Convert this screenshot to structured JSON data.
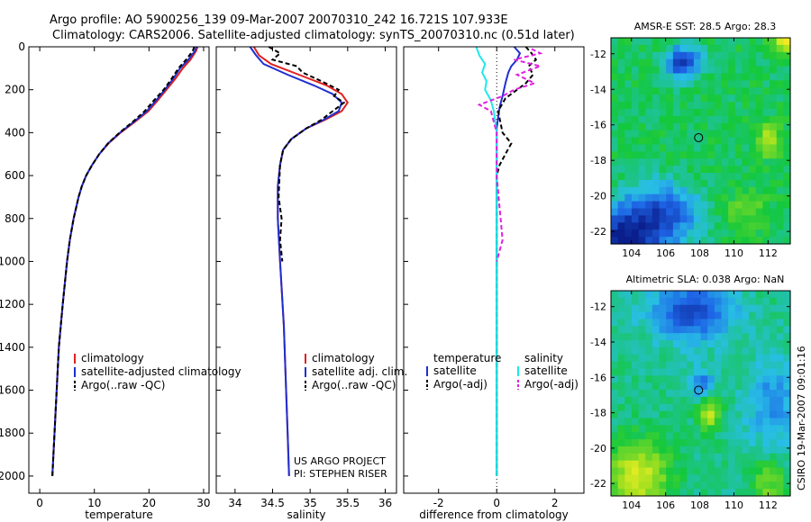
{
  "header": {
    "title_line1": "Argo profile: AO 5900256_139 09-Mar-2007 20070310_242 16.721S 107.933E",
    "title_line2": "Climatology: CARS2006. Satellite-adjusted climatology: synTS_20070310.nc (0.51d later)"
  },
  "colors": {
    "climatology": "#e02020",
    "satellite": "#1f2fd0",
    "argo": "#000000",
    "salinity_satellite": "#20e8e8",
    "salinity_argo": "#e020e0"
  },
  "chart_data": [
    {
      "id": "temperature",
      "type": "line",
      "xlabel": "temperature",
      "ylabel": "",
      "xlim": [
        -2,
        31
      ],
      "ylim": [
        2080,
        0
      ],
      "xticks": [
        0,
        10,
        20,
        30
      ],
      "xtick_labels": [
        "0",
        "10",
        "20",
        "30"
      ],
      "yticks": [
        0,
        200,
        400,
        600,
        800,
        1000,
        1200,
        1400,
        1600,
        1800,
        2000
      ],
      "ytick_labels": [
        "0",
        "200",
        "400",
        "600",
        "800",
        "1000",
        "1200",
        "1400",
        "1600",
        "1800",
        "2000"
      ],
      "legend": [
        "climatology",
        "satellite-adjusted climatology",
        "Argo(..raw -QC)"
      ],
      "legend_position": "lower-right",
      "series": [
        {
          "name": "climatology",
          "color_key": "climatology",
          "dash": "",
          "points": [
            [
              28.9,
              0
            ],
            [
              28.6,
              20
            ],
            [
              27.6,
              60
            ],
            [
              26.2,
              100
            ],
            [
              24.8,
              150
            ],
            [
              23.2,
              200
            ],
            [
              21.6,
              250
            ],
            [
              19.9,
              300
            ],
            [
              17.4,
              350
            ],
            [
              14.8,
              400
            ],
            [
              12.6,
              450
            ],
            [
              10.9,
              500
            ],
            [
              9.6,
              550
            ],
            [
              8.5,
              600
            ],
            [
              7.7,
              650
            ],
            [
              7.1,
              700
            ],
            [
              6.2,
              800
            ],
            [
              5.5,
              900
            ],
            [
              5.0,
              1000
            ],
            [
              4.2,
              1200
            ],
            [
              3.5,
              1400
            ],
            [
              3.1,
              1600
            ],
            [
              2.7,
              1800
            ],
            [
              2.3,
              2000
            ]
          ]
        },
        {
          "name": "satellite-adjusted climatology",
          "color_key": "satellite",
          "dash": "",
          "points": [
            [
              28.7,
              0
            ],
            [
              28.4,
              20
            ],
            [
              27.2,
              60
            ],
            [
              25.7,
              100
            ],
            [
              24.4,
              150
            ],
            [
              22.9,
              200
            ],
            [
              21.3,
              250
            ],
            [
              19.6,
              300
            ],
            [
              17.2,
              350
            ],
            [
              14.7,
              400
            ],
            [
              12.5,
              450
            ],
            [
              10.9,
              500
            ],
            [
              9.6,
              550
            ],
            [
              8.5,
              600
            ],
            [
              7.7,
              650
            ],
            [
              7.1,
              700
            ],
            [
              6.2,
              800
            ],
            [
              5.5,
              900
            ],
            [
              5.0,
              1000
            ],
            [
              4.2,
              1200
            ],
            [
              3.5,
              1400
            ],
            [
              3.1,
              1600
            ],
            [
              2.7,
              1800
            ],
            [
              2.3,
              2000
            ]
          ]
        },
        {
          "name": "Argo(..raw -QC)",
          "color_key": "argo",
          "dash": "5 3",
          "points": [
            [
              28.3,
              0
            ],
            [
              28.0,
              20
            ],
            [
              26.8,
              60
            ],
            [
              25.4,
              100
            ],
            [
              24.1,
              150
            ],
            [
              22.7,
              200
            ],
            [
              20.9,
              250
            ],
            [
              19.2,
              300
            ],
            [
              17.0,
              350
            ],
            [
              14.6,
              400
            ],
            [
              12.5,
              450
            ],
            [
              10.9,
              500
            ],
            [
              9.6,
              550
            ],
            [
              8.5,
              600
            ],
            [
              7.7,
              650
            ],
            [
              7.1,
              700
            ],
            [
              6.2,
              800
            ],
            [
              5.5,
              900
            ],
            [
              5.0,
              1000
            ],
            [
              4.2,
              1200
            ],
            [
              3.5,
              1400
            ],
            [
              3.1,
              1600
            ],
            [
              2.7,
              1800
            ],
            [
              2.3,
              2000
            ]
          ]
        }
      ]
    },
    {
      "id": "salinity",
      "type": "line",
      "xlabel": "salinity",
      "xlim": [
        33.75,
        36.15
      ],
      "ylim": [
        2080,
        0
      ],
      "xticks": [
        34,
        34.5,
        35,
        35.5,
        36
      ],
      "xtick_labels": [
        "34",
        "34.5",
        "35",
        "35.5",
        "36"
      ],
      "legend": [
        "climatology",
        "satellite adj. clim.",
        "Argo(..raw -QC)"
      ],
      "legend_position": "lower-right",
      "annotations": [
        "US ARGO PROJECT",
        "PI: STEPHEN RISER"
      ],
      "series": [
        {
          "name": "climatology",
          "color_key": "climatology",
          "dash": "",
          "points": [
            [
              34.25,
              0
            ],
            [
              34.32,
              40
            ],
            [
              34.48,
              80
            ],
            [
              34.85,
              130
            ],
            [
              35.22,
              180
            ],
            [
              35.42,
              220
            ],
            [
              35.5,
              260
            ],
            [
              35.42,
              300
            ],
            [
              35.2,
              340
            ],
            [
              34.95,
              380
            ],
            [
              34.75,
              430
            ],
            [
              34.64,
              480
            ],
            [
              34.6,
              550
            ],
            [
              34.57,
              650
            ],
            [
              34.57,
              800
            ],
            [
              34.6,
              1000
            ],
            [
              34.65,
              1300
            ],
            [
              34.68,
              1600
            ],
            [
              34.7,
              1800
            ],
            [
              34.72,
              2000
            ]
          ]
        },
        {
          "name": "satellite adj. clim.",
          "color_key": "satellite",
          "dash": "",
          "points": [
            [
              34.2,
              0
            ],
            [
              34.28,
              40
            ],
            [
              34.38,
              80
            ],
            [
              34.7,
              130
            ],
            [
              35.05,
              180
            ],
            [
              35.3,
              220
            ],
            [
              35.42,
              260
            ],
            [
              35.38,
              300
            ],
            [
              35.18,
              340
            ],
            [
              34.95,
              380
            ],
            [
              34.75,
              430
            ],
            [
              34.64,
              480
            ],
            [
              34.6,
              550
            ],
            [
              34.57,
              650
            ],
            [
              34.57,
              800
            ],
            [
              34.6,
              1000
            ],
            [
              34.65,
              1300
            ],
            [
              34.68,
              1600
            ],
            [
              34.7,
              1800
            ],
            [
              34.72,
              2000
            ]
          ]
        },
        {
          "name": "Argo(..raw -QC)",
          "color_key": "argo",
          "dash": "5 3",
          "points": [
            [
              34.45,
              0
            ],
            [
              34.6,
              30
            ],
            [
              34.5,
              60
            ],
            [
              34.82,
              90
            ],
            [
              34.9,
              120
            ],
            [
              35.15,
              160
            ],
            [
              35.38,
              200
            ],
            [
              35.32,
              230
            ],
            [
              35.45,
              260
            ],
            [
              35.3,
              300
            ],
            [
              35.15,
              340
            ],
            [
              34.95,
              380
            ],
            [
              34.75,
              430
            ],
            [
              34.64,
              480
            ],
            [
              34.6,
              550
            ],
            [
              34.58,
              700
            ],
            [
              34.62,
              800
            ],
            [
              34.6,
              900
            ],
            [
              34.63,
              1000
            ]
          ]
        }
      ]
    },
    {
      "id": "difference",
      "type": "line",
      "xlabel": "difference from climatology",
      "xlim": [
        -3.2,
        3.0
      ],
      "ylim": [
        2080,
        0
      ],
      "xticks": [
        -2,
        0,
        2
      ],
      "xtick_labels": [
        "-2",
        "0",
        "2"
      ],
      "legend_headers": [
        "temperature",
        "salinity"
      ],
      "legend": [
        "satellite",
        "Argo(-adj)",
        "satellite",
        "Argo(-adj)"
      ],
      "legend_position": "lower-center",
      "series": [
        {
          "name": "temperature satellite",
          "color_key": "satellite",
          "dash": "",
          "points": [
            [
              0.6,
              0
            ],
            [
              0.8,
              30
            ],
            [
              0.7,
              60
            ],
            [
              0.5,
              90
            ],
            [
              0.4,
              120
            ],
            [
              0.3,
              170
            ],
            [
              0.2,
              230
            ],
            [
              0.1,
              280
            ],
            [
              0.05,
              330
            ],
            [
              0.0,
              380
            ],
            [
              0.0,
              2000
            ]
          ]
        },
        {
          "name": "temperature Argo(-adj)",
          "color_key": "argo",
          "dash": "5 3",
          "points": [
            [
              1.0,
              0
            ],
            [
              1.2,
              30
            ],
            [
              1.35,
              60
            ],
            [
              1.1,
              90
            ],
            [
              1.25,
              130
            ],
            [
              1.0,
              170
            ],
            [
              0.7,
              200
            ],
            [
              0.3,
              240
            ],
            [
              0.05,
              300
            ],
            [
              0.2,
              400
            ],
            [
              0.5,
              450
            ],
            [
              0.3,
              500
            ],
            [
              0.1,
              550
            ],
            [
              0.0,
              600
            ],
            [
              0.0,
              2000
            ]
          ]
        },
        {
          "name": "salinity satellite",
          "color_key": "salinity_satellite",
          "dash": "",
          "points": [
            [
              -0.7,
              0
            ],
            [
              -0.6,
              40
            ],
            [
              -0.4,
              80
            ],
            [
              -0.5,
              120
            ],
            [
              -0.35,
              160
            ],
            [
              -0.4,
              200
            ],
            [
              -0.2,
              250
            ],
            [
              -0.1,
              300
            ],
            [
              0.0,
              400
            ],
            [
              0.0,
              2000
            ]
          ]
        },
        {
          "name": "salinity Argo(-adj)",
          "color_key": "salinity_argo",
          "dash": "5 3",
          "points": [
            [
              1.2,
              10
            ],
            [
              1.5,
              30
            ],
            [
              0.6,
              60
            ],
            [
              1.5,
              90
            ],
            [
              0.7,
              130
            ],
            [
              1.3,
              170
            ],
            [
              0.6,
              200
            ],
            [
              0.2,
              230
            ],
            [
              -0.6,
              270
            ],
            [
              -0.2,
              300
            ],
            [
              -0.1,
              350
            ],
            [
              0.0,
              400
            ],
            [
              0.0,
              600
            ],
            [
              0.2,
              900
            ],
            [
              0.0,
              1000
            ]
          ]
        }
      ]
    },
    {
      "id": "sst-map",
      "type": "heatmap",
      "title": "AMSR-E SST: 28.5 Argo: 28.3",
      "xlim": [
        102.8,
        113.3
      ],
      "ylim": [
        -22.7,
        -11.1
      ],
      "xticks": [
        104,
        106,
        108,
        110,
        112
      ],
      "xtick_labels": [
        "104",
        "106",
        "108",
        "110",
        "112"
      ],
      "yticks": [
        -12,
        -14,
        -16,
        -18,
        -20,
        -22
      ],
      "ytick_labels": [
        "-12",
        "-14",
        "-16",
        "-18",
        "-20",
        "-22"
      ],
      "marker": [
        107.933,
        -16.721
      ]
    },
    {
      "id": "sla-map",
      "type": "heatmap",
      "title": "Altimetric SLA: 0.038 Argo: NaN",
      "xlim": [
        102.8,
        113.3
      ],
      "ylim": [
        -22.7,
        -11.1
      ],
      "xticks": [
        104,
        106,
        108,
        110,
        112
      ],
      "xtick_labels": [
        "104",
        "106",
        "108",
        "110",
        "112"
      ],
      "yticks": [
        -12,
        -14,
        -16,
        -18,
        -20,
        -22
      ],
      "ytick_labels": [
        "-12",
        "-14",
        "-16",
        "-18",
        "-20",
        "-22"
      ],
      "marker": [
        107.933,
        -16.721
      ]
    }
  ],
  "footer": {
    "credit": "CSIRO 19-Mar-2007 09:01:16"
  }
}
